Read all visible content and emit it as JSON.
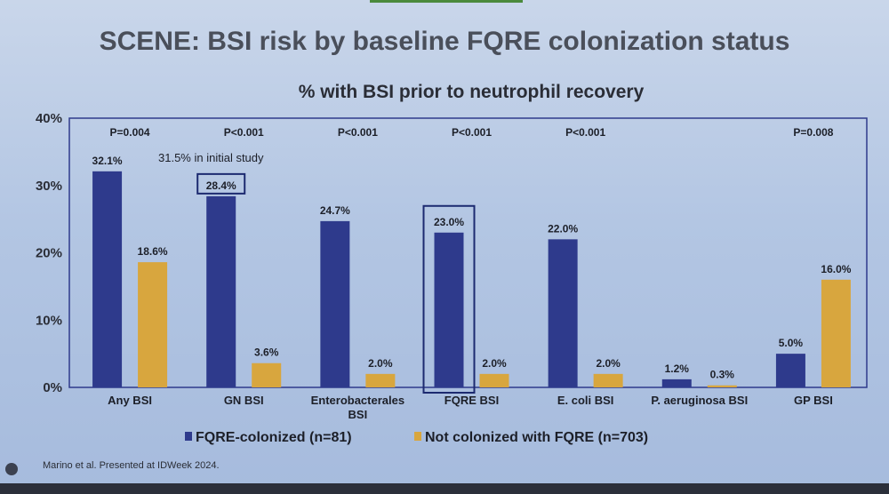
{
  "slide": {
    "title": "SCENE: BSI risk by baseline FQRE colonization status",
    "footer": "Marino et al. Presented at IDWeek 2024."
  },
  "chart_data": {
    "type": "bar",
    "title": "% with BSI prior to neutrophil recovery",
    "categories": [
      "Any BSI",
      "GN BSI",
      "Enterobacterales BSI",
      "FQRE BSI",
      "E. coli BSI",
      "P. aeruginosa BSI",
      "GP BSI"
    ],
    "series": [
      {
        "name": "FQRE-colonized (n=81)",
        "color": "#2e3a8c",
        "values": [
          32.1,
          28.4,
          24.7,
          23.0,
          22.0,
          1.2,
          5.0
        ],
        "labels": [
          "32.1%",
          "28.4%",
          "24.7%",
          "23.0%",
          "22.0%",
          "1.2%",
          "5.0%"
        ]
      },
      {
        "name": "Not colonized with FQRE (n=703)",
        "color": "#d8a63e",
        "values": [
          18.6,
          3.6,
          2.0,
          2.0,
          2.0,
          0.3,
          16.0
        ],
        "labels": [
          "18.6%",
          "3.6%",
          "2.0%",
          "2.0%",
          "2.0%",
          "0.3%",
          "16.0%"
        ]
      }
    ],
    "p_values": [
      "P=0.004",
      "P<0.001",
      "P<0.001",
      "P<0.001",
      "P<0.001",
      "",
      "P=0.008"
    ],
    "yticks": [
      "0%",
      "10%",
      "20%",
      "30%",
      "40%"
    ],
    "ylim": [
      0,
      40
    ],
    "annotation": "31.5% in initial study",
    "highlighted": [
      "GN BSI label 28.4%",
      "FQRE BSI colonized bar"
    ],
    "legend_position": "bottom",
    "grid": false
  }
}
